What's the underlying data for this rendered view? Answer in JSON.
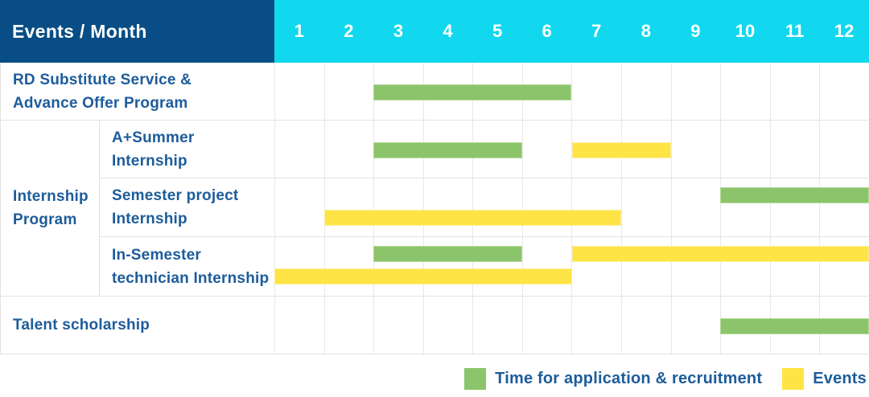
{
  "header": {
    "title": "Events / Month",
    "months": [
      "1",
      "2",
      "3",
      "4",
      "5",
      "6",
      "7",
      "8",
      "9",
      "10",
      "11",
      "12"
    ]
  },
  "colors": {
    "header_bg": "#084d85",
    "months_bg": "#11d8ee",
    "bar_green": "#8bc46a",
    "bar_yellow": "#ffe445",
    "label_text": "#1d5c9b",
    "gridline": "#e3e3e3"
  },
  "legend": [
    {
      "label": "Time for application & recruitment",
      "color": "green"
    },
    {
      "label": "Events",
      "color": "yellow"
    }
  ],
  "chart_data": {
    "type": "bar",
    "subtype": "gantt",
    "title": "Events / Month",
    "xlabel": "Month",
    "x_ticks": [
      1,
      2,
      3,
      4,
      5,
      6,
      7,
      8,
      9,
      10,
      11,
      12
    ],
    "x_range": [
      1,
      12
    ],
    "grid": true,
    "legend_position": "bottom-right",
    "series_legend": [
      "Time for application & recruitment",
      "Events"
    ],
    "rows": [
      {
        "group": null,
        "label": "RD Substitute Service &\nAdvance Offer Program",
        "bars": [
          {
            "series": "Time for application & recruitment",
            "color": "green",
            "start_month": 3,
            "end_month": 6,
            "line": "single"
          }
        ]
      },
      {
        "group": "Internship\nProgram",
        "label": "A+Summer\nInternship",
        "bars": [
          {
            "series": "Time for application & recruitment",
            "color": "green",
            "start_month": 3,
            "end_month": 5,
            "line": "single"
          },
          {
            "series": "Events",
            "color": "yellow",
            "start_month": 7,
            "end_month": 8,
            "line": "single"
          }
        ]
      },
      {
        "group": "Internship\nProgram",
        "label": "Semester project\nInternship",
        "bars": [
          {
            "series": "Time for application & recruitment",
            "color": "green",
            "start_month": 10,
            "end_month": 12,
            "line": "top"
          },
          {
            "series": "Events",
            "color": "yellow",
            "start_month": 2,
            "end_month": 7,
            "line": "bottom"
          }
        ]
      },
      {
        "group": "Internship\nProgram",
        "label": "In-Semester\ntechnician Internship",
        "bars": [
          {
            "series": "Time for application & recruitment",
            "color": "green",
            "start_month": 3,
            "end_month": 5,
            "line": "top"
          },
          {
            "series": "Events",
            "color": "yellow",
            "start_month": 7,
            "end_month": 12,
            "line": "top"
          },
          {
            "series": "Events",
            "color": "yellow",
            "start_month": 1,
            "end_month": 6,
            "line": "bottom"
          }
        ]
      },
      {
        "group": null,
        "label": "Talent scholarship",
        "bars": [
          {
            "series": "Time for application & recruitment",
            "color": "green",
            "start_month": 10,
            "end_month": 12,
            "line": "single"
          }
        ]
      }
    ]
  }
}
